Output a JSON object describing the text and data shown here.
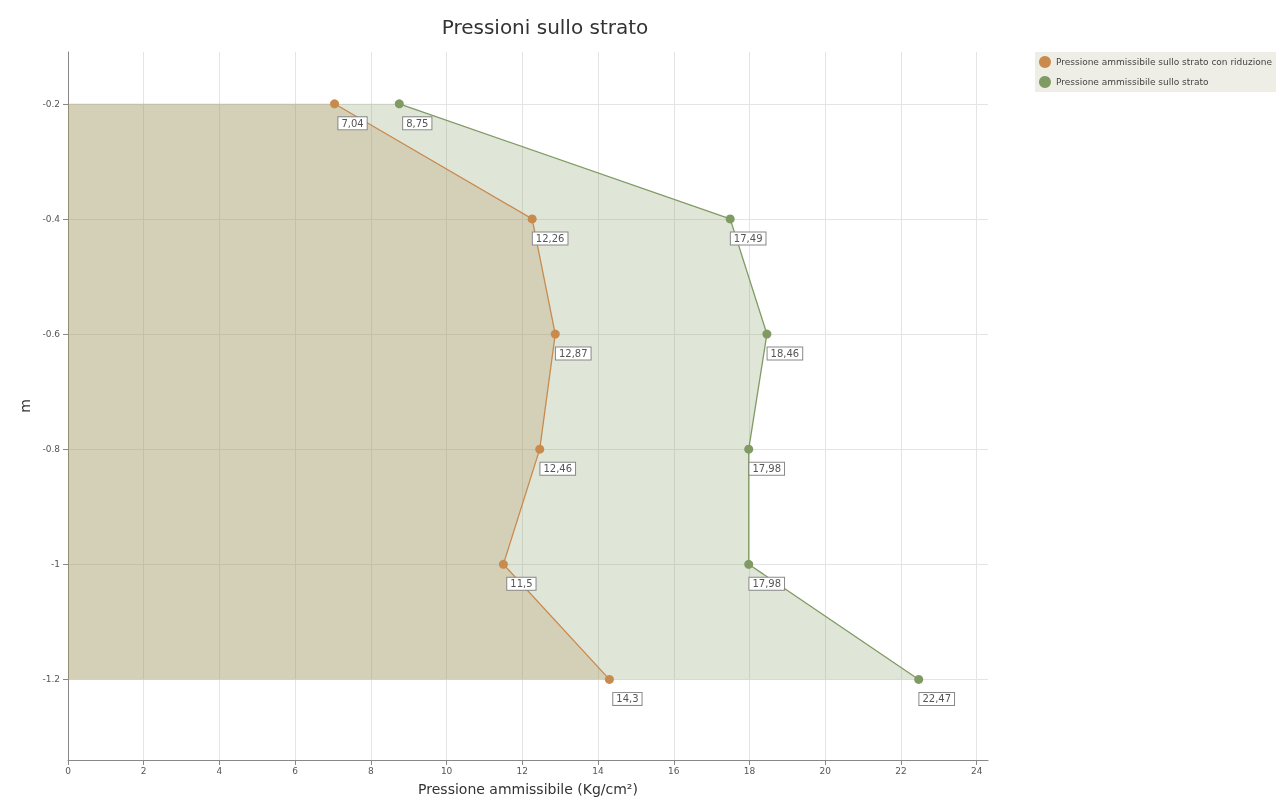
{
  "chart_data": {
    "type": "area",
    "orientation": "horizontal",
    "title": "Pressioni sullo strato",
    "xlabel": "Pressione ammissibile (Kg/cm²)",
    "ylabel": "m",
    "series": [
      {
        "name": "Pressione ammissibile sullo strato con riduzione",
        "color": "#c98a4e",
        "x": [
          -0.2,
          -0.4,
          -0.6,
          -0.8,
          -1,
          -1.2
        ],
        "values": [
          7.04,
          12.26,
          12.87,
          12.46,
          11.5,
          14.3
        ],
        "value_labels": [
          "7,04",
          "12,26",
          "12,87",
          "12,46",
          "11,5",
          "14,3"
        ]
      },
      {
        "name": "Pressione ammissibile sullo strato",
        "color": "#7f9a63",
        "x": [
          -0.2,
          -0.4,
          -0.6,
          -0.8,
          -1,
          -1.2
        ],
        "values": [
          8.75,
          17.49,
          18.46,
          17.98,
          17.98,
          22.47
        ],
        "value_labels": [
          "8,75",
          "17,49",
          "18,46",
          "17,98",
          "17,98",
          "22,47"
        ]
      }
    ],
    "xlim": [
      0,
      24.3
    ],
    "xticks": [
      0,
      2,
      4,
      6,
      8,
      10,
      12,
      14,
      16,
      18,
      20,
      22,
      24
    ],
    "ylim": [
      -1.34,
      -0.11
    ],
    "yticks": [
      -1.2,
      -1,
      -0.8,
      -0.6,
      -0.4,
      -0.2
    ],
    "grid": true,
    "legend": "top right",
    "marker": "circle",
    "line_style": "solid"
  }
}
